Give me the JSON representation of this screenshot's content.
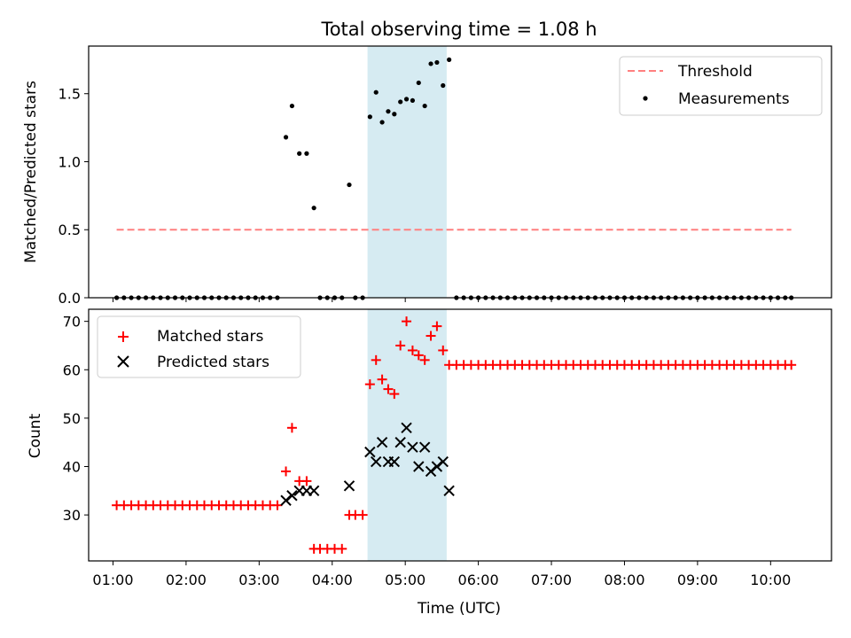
{
  "chart_data": [
    {
      "type": "scatter",
      "title": "Total observing time = 1.08 h",
      "xlabel": "",
      "ylabel": "Matched/Predicted stars",
      "xlim": [
        "00:40",
        "10:50"
      ],
      "ylim": [
        0,
        1.85
      ],
      "yticks": [
        0.0,
        0.5,
        1.0,
        1.5
      ],
      "ytick_labels": [
        "0.0",
        "0.5",
        "1.0",
        "1.5"
      ],
      "shaded_interval": [
        "04:29",
        "05:34"
      ],
      "threshold": {
        "name": "Threshold",
        "value": 0.5,
        "x_range": [
          "01:03",
          "10:17"
        ],
        "color": "#ff7f7f",
        "style": "dashed"
      },
      "legend": {
        "position": "top-right",
        "entries": [
          "Threshold",
          "Measurements"
        ]
      },
      "series": [
        {
          "name": "Measurements",
          "color": "#000000",
          "marker": "dot",
          "points": [
            [
              "01:03",
              0
            ],
            [
              "01:09",
              0
            ],
            [
              "01:15",
              0
            ],
            [
              "01:21",
              0
            ],
            [
              "01:27",
              0
            ],
            [
              "01:33",
              0
            ],
            [
              "01:39",
              0
            ],
            [
              "01:45",
              0
            ],
            [
              "01:51",
              0
            ],
            [
              "01:57",
              0
            ],
            [
              "02:03",
              0
            ],
            [
              "02:09",
              0
            ],
            [
              "02:15",
              0
            ],
            [
              "02:21",
              0
            ],
            [
              "02:27",
              0
            ],
            [
              "02:33",
              0
            ],
            [
              "02:39",
              0
            ],
            [
              "02:45",
              0
            ],
            [
              "02:51",
              0
            ],
            [
              "02:57",
              0
            ],
            [
              "03:03",
              0
            ],
            [
              "03:09",
              0
            ],
            [
              "03:15",
              0
            ],
            [
              "03:22",
              1.18
            ],
            [
              "03:27",
              1.41
            ],
            [
              "03:33",
              1.06
            ],
            [
              "03:39",
              1.06
            ],
            [
              "03:45",
              0.66
            ],
            [
              "03:50",
              0
            ],
            [
              "03:56",
              0
            ],
            [
              "04:02",
              0
            ],
            [
              "04:08",
              0
            ],
            [
              "04:14",
              0.83
            ],
            [
              "04:19",
              0
            ],
            [
              "04:25",
              0
            ],
            [
              "04:31",
              1.33
            ],
            [
              "04:36",
              1.51
            ],
            [
              "04:41",
              1.29
            ],
            [
              "04:46",
              1.37
            ],
            [
              "04:51",
              1.35
            ],
            [
              "04:56",
              1.44
            ],
            [
              "05:01",
              1.46
            ],
            [
              "05:06",
              1.45
            ],
            [
              "05:11",
              1.58
            ],
            [
              "05:16",
              1.41
            ],
            [
              "05:21",
              1.72
            ],
            [
              "05:26",
              1.73
            ],
            [
              "05:31",
              1.56
            ],
            [
              "05:36",
              1.75
            ],
            [
              "05:42",
              0
            ],
            [
              "05:48",
              0
            ],
            [
              "05:54",
              0
            ],
            [
              "06:00",
              0
            ],
            [
              "06:06",
              0
            ],
            [
              "06:12",
              0
            ],
            [
              "06:18",
              0
            ],
            [
              "06:24",
              0
            ],
            [
              "06:30",
              0
            ],
            [
              "06:36",
              0
            ],
            [
              "06:42",
              0
            ],
            [
              "06:48",
              0
            ],
            [
              "06:54",
              0
            ],
            [
              "07:00",
              0
            ],
            [
              "07:06",
              0
            ],
            [
              "07:12",
              0
            ],
            [
              "07:18",
              0
            ],
            [
              "07:24",
              0
            ],
            [
              "07:30",
              0
            ],
            [
              "07:36",
              0
            ],
            [
              "07:42",
              0
            ],
            [
              "07:48",
              0
            ],
            [
              "07:54",
              0
            ],
            [
              "08:00",
              0
            ],
            [
              "08:06",
              0
            ],
            [
              "08:12",
              0
            ],
            [
              "08:18",
              0
            ],
            [
              "08:24",
              0
            ],
            [
              "08:30",
              0
            ],
            [
              "08:36",
              0
            ],
            [
              "08:42",
              0
            ],
            [
              "08:48",
              0
            ],
            [
              "08:54",
              0
            ],
            [
              "09:00",
              0
            ],
            [
              "09:06",
              0
            ],
            [
              "09:12",
              0
            ],
            [
              "09:18",
              0
            ],
            [
              "09:24",
              0
            ],
            [
              "09:30",
              0
            ],
            [
              "09:36",
              0
            ],
            [
              "09:42",
              0
            ],
            [
              "09:48",
              0
            ],
            [
              "09:54",
              0
            ],
            [
              "10:00",
              0
            ],
            [
              "10:06",
              0
            ],
            [
              "10:12",
              0
            ],
            [
              "10:17",
              0
            ]
          ]
        }
      ]
    },
    {
      "type": "scatter",
      "title": "",
      "xlabel": "Time (UTC)",
      "ylabel": "Count",
      "xlim": [
        "00:40",
        "10:50"
      ],
      "ylim": [
        20.5,
        72.5
      ],
      "yticks": [
        30,
        40,
        50,
        60,
        70
      ],
      "ytick_labels": [
        "30",
        "40",
        "50",
        "60",
        "70"
      ],
      "xticks": [
        "01:00",
        "02:00",
        "03:00",
        "04:00",
        "05:00",
        "06:00",
        "07:00",
        "08:00",
        "09:00",
        "10:00"
      ],
      "shaded_interval": [
        "04:29",
        "05:34"
      ],
      "legend": {
        "position": "top-left",
        "entries": [
          "Matched stars",
          "Predicted stars"
        ]
      },
      "series": [
        {
          "name": "Matched stars",
          "color": "#ff0000",
          "marker": "plus",
          "points": [
            [
              "01:03",
              32
            ],
            [
              "01:09",
              32
            ],
            [
              "01:15",
              32
            ],
            [
              "01:21",
              32
            ],
            [
              "01:27",
              32
            ],
            [
              "01:33",
              32
            ],
            [
              "01:39",
              32
            ],
            [
              "01:45",
              32
            ],
            [
              "01:51",
              32
            ],
            [
              "01:57",
              32
            ],
            [
              "02:03",
              32
            ],
            [
              "02:09",
              32
            ],
            [
              "02:15",
              32
            ],
            [
              "02:21",
              32
            ],
            [
              "02:27",
              32
            ],
            [
              "02:33",
              32
            ],
            [
              "02:39",
              32
            ],
            [
              "02:45",
              32
            ],
            [
              "02:51",
              32
            ],
            [
              "02:57",
              32
            ],
            [
              "03:03",
              32
            ],
            [
              "03:09",
              32
            ],
            [
              "03:15",
              32
            ],
            [
              "03:22",
              39
            ],
            [
              "03:27",
              48
            ],
            [
              "03:33",
              37
            ],
            [
              "03:39",
              37
            ],
            [
              "03:45",
              23
            ],
            [
              "03:50",
              23
            ],
            [
              "03:56",
              23
            ],
            [
              "04:02",
              23
            ],
            [
              "04:08",
              23
            ],
            [
              "04:14",
              30
            ],
            [
              "04:19",
              30
            ],
            [
              "04:25",
              30
            ],
            [
              "04:31",
              57
            ],
            [
              "04:36",
              62
            ],
            [
              "04:41",
              58
            ],
            [
              "04:46",
              56
            ],
            [
              "04:51",
              55
            ],
            [
              "04:56",
              65
            ],
            [
              "05:01",
              70
            ],
            [
              "05:06",
              64
            ],
            [
              "05:11",
              63
            ],
            [
              "05:16",
              62
            ],
            [
              "05:21",
              67
            ],
            [
              "05:26",
              69
            ],
            [
              "05:31",
              64
            ],
            [
              "05:36",
              61
            ],
            [
              "05:42",
              61
            ],
            [
              "05:48",
              61
            ],
            [
              "05:54",
              61
            ],
            [
              "06:00",
              61
            ],
            [
              "06:06",
              61
            ],
            [
              "06:12",
              61
            ],
            [
              "06:18",
              61
            ],
            [
              "06:24",
              61
            ],
            [
              "06:30",
              61
            ],
            [
              "06:36",
              61
            ],
            [
              "06:42",
              61
            ],
            [
              "06:48",
              61
            ],
            [
              "06:54",
              61
            ],
            [
              "07:00",
              61
            ],
            [
              "07:06",
              61
            ],
            [
              "07:12",
              61
            ],
            [
              "07:18",
              61
            ],
            [
              "07:24",
              61
            ],
            [
              "07:30",
              61
            ],
            [
              "07:36",
              61
            ],
            [
              "07:42",
              61
            ],
            [
              "07:48",
              61
            ],
            [
              "07:54",
              61
            ],
            [
              "08:00",
              61
            ],
            [
              "08:06",
              61
            ],
            [
              "08:12",
              61
            ],
            [
              "08:18",
              61
            ],
            [
              "08:24",
              61
            ],
            [
              "08:30",
              61
            ],
            [
              "08:36",
              61
            ],
            [
              "08:42",
              61
            ],
            [
              "08:48",
              61
            ],
            [
              "08:54",
              61
            ],
            [
              "09:00",
              61
            ],
            [
              "09:06",
              61
            ],
            [
              "09:12",
              61
            ],
            [
              "09:18",
              61
            ],
            [
              "09:24",
              61
            ],
            [
              "09:30",
              61
            ],
            [
              "09:36",
              61
            ],
            [
              "09:42",
              61
            ],
            [
              "09:48",
              61
            ],
            [
              "09:54",
              61
            ],
            [
              "10:00",
              61
            ],
            [
              "10:06",
              61
            ],
            [
              "10:12",
              61
            ],
            [
              "10:17",
              61
            ]
          ]
        },
        {
          "name": "Predicted stars",
          "color": "#000000",
          "marker": "x",
          "points": [
            [
              "03:22",
              33
            ],
            [
              "03:27",
              34
            ],
            [
              "03:33",
              35
            ],
            [
              "03:39",
              35
            ],
            [
              "03:45",
              35
            ],
            [
              "04:14",
              36
            ],
            [
              "04:31",
              43
            ],
            [
              "04:36",
              41
            ],
            [
              "04:41",
              45
            ],
            [
              "04:46",
              41
            ],
            [
              "04:51",
              41
            ],
            [
              "04:56",
              45
            ],
            [
              "05:01",
              48
            ],
            [
              "05:06",
              44
            ],
            [
              "05:11",
              40
            ],
            [
              "05:16",
              44
            ],
            [
              "05:21",
              39
            ],
            [
              "05:26",
              40
            ],
            [
              "05:31",
              41
            ],
            [
              "05:36",
              35
            ]
          ]
        }
      ]
    }
  ]
}
